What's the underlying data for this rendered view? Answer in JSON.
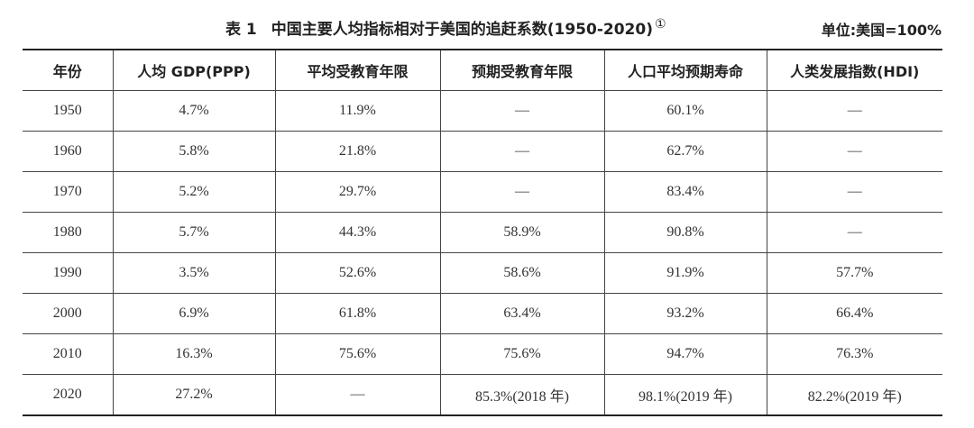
{
  "title": {
    "label": "表 1",
    "text": "中国主要人均指标相对于美国的追赶系数(1950-2020)",
    "note": "①"
  },
  "unit": "单位:美国=100%",
  "table": {
    "header": [
      "年份",
      "人均 GDP(PPP)",
      "平均受教育年限",
      "预期受教育年限",
      "人口平均预期寿命",
      "人类发展指数(HDI)"
    ],
    "rows": [
      [
        "1950",
        "4.7%",
        "11.9%",
        "—",
        "60.1%",
        "—"
      ],
      [
        "1960",
        "5.8%",
        "21.8%",
        "—",
        "62.7%",
        "—"
      ],
      [
        "1970",
        "5.2%",
        "29.7%",
        "—",
        "83.4%",
        "—"
      ],
      [
        "1980",
        "5.7%",
        "44.3%",
        "58.9%",
        "90.8%",
        "—"
      ],
      [
        "1990",
        "3.5%",
        "52.6%",
        "58.6%",
        "91.9%",
        "57.7%"
      ],
      [
        "2000",
        "6.9%",
        "61.8%",
        "63.4%",
        "93.2%",
        "66.4%"
      ],
      [
        "2010",
        "16.3%",
        "75.6%",
        "75.6%",
        "94.7%",
        "76.3%"
      ],
      [
        "2020",
        "27.2%",
        "—",
        "85.3%(2018 年)",
        "98.1%(2019 年)",
        "82.2%(2019 年)"
      ]
    ]
  }
}
